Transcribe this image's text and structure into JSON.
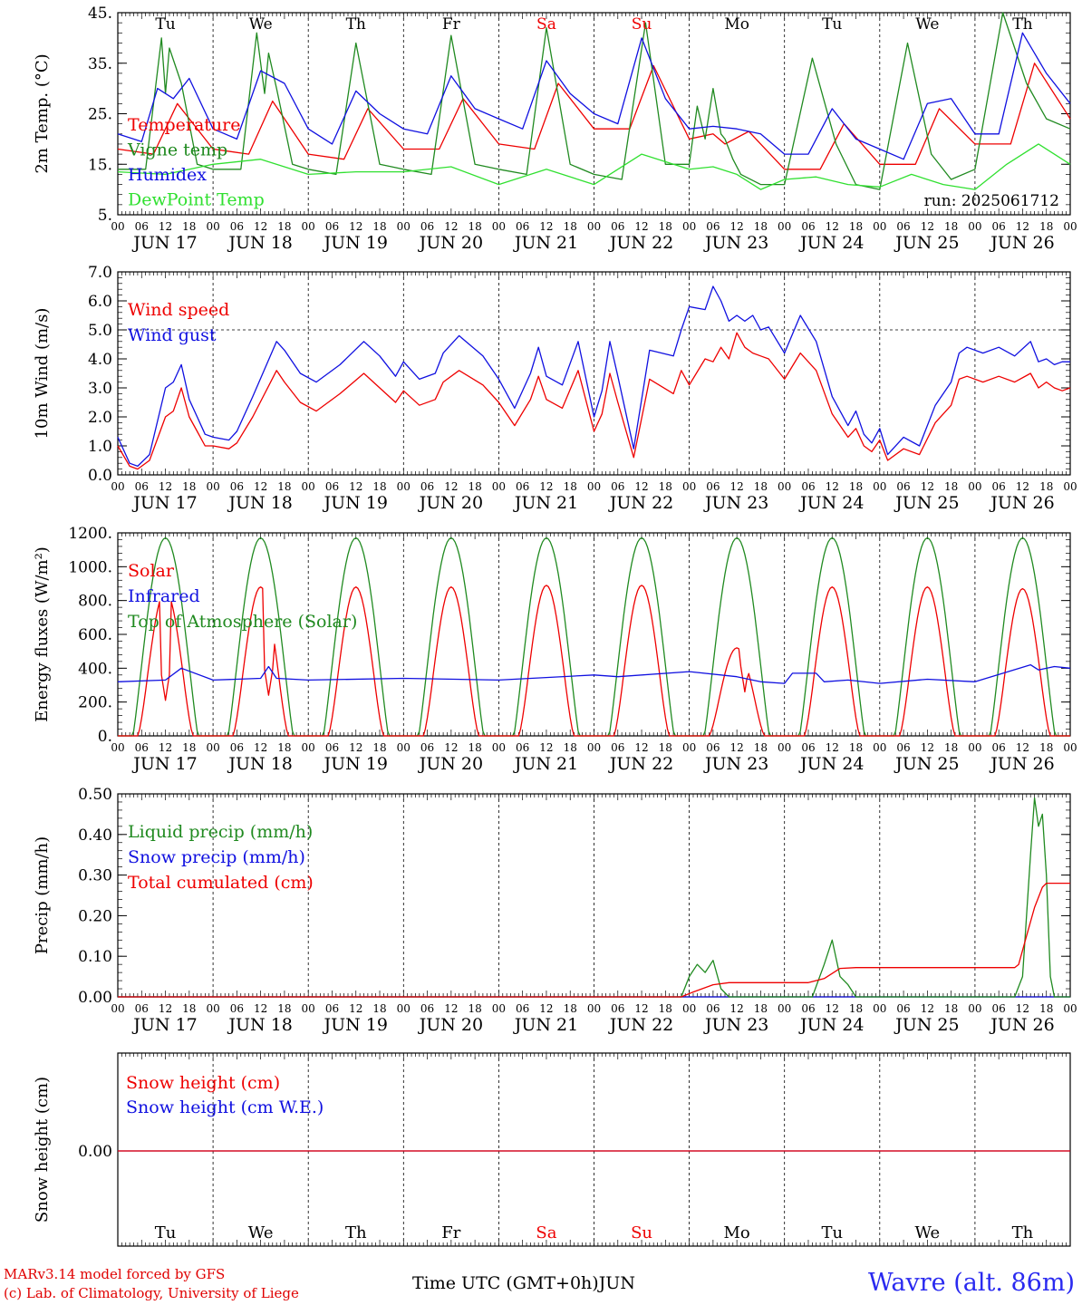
{
  "colors": {
    "red": "#ee0000",
    "green": "#208a20",
    "blue": "#1010e0",
    "lightgreen": "#30e030",
    "axis": "#000000",
    "weekend": "#ee0000"
  },
  "days": [
    "Tu",
    "We",
    "Th",
    "Fr",
    "Sa",
    "Su",
    "Mo",
    "Tu",
    "We",
    "Th"
  ],
  "weekend_days": [
    "Sa",
    "Su"
  ],
  "dates": [
    "JUN 17",
    "JUN 18",
    "JUN 19",
    "JUN 20",
    "JUN 21",
    "JUN 22",
    "JUN 23",
    "JUN 24",
    "JUN 25",
    "JUN 26"
  ],
  "date_numbers": [
    "17",
    "18",
    "19",
    "20",
    "21",
    "22",
    "23",
    "24",
    "25",
    "26"
  ],
  "hour_ticks": [
    "00",
    "06",
    "12",
    "18"
  ],
  "hour_tick_final": "00",
  "footer": {
    "credit1": "MARv3.14 model forced by GFS",
    "credit2": "(c) Lab. of Climatology, University of Liege",
    "station": "Wavre (alt. 86m)",
    "xlabel": "Time UTC (GMT+0h)JUN"
  },
  "chart_data": [
    {
      "type": "line",
      "ylabel": "2m Temp. (°C)",
      "ylim": [
        5,
        45
      ],
      "yticks": [
        "5.",
        "15.",
        "25.",
        "35.",
        "45."
      ],
      "annotation": "run: 2025061712",
      "days_labels_shown": true,
      "series": [
        {
          "name": "Temperature",
          "color": "red",
          "x": [
            0,
            9,
            15,
            24,
            33,
            39,
            48,
            57,
            63,
            72,
            81,
            87,
            96,
            105,
            111,
            120,
            129,
            135,
            144,
            150,
            153,
            159,
            162,
            168,
            177,
            183,
            192,
            201,
            207,
            216,
            225,
            231,
            240
          ],
          "y": [
            18,
            17,
            27,
            18,
            17,
            27.5,
            17,
            16,
            26,
            18,
            18,
            28,
            19,
            18,
            31,
            22,
            22,
            34.5,
            20,
            21,
            19,
            21.5,
            19,
            14,
            14,
            23,
            15,
            15,
            26,
            19,
            19,
            35,
            24
          ]
        },
        {
          "name": "Vigne temp",
          "color": "green",
          "x": [
            0,
            7,
            11,
            12,
            13,
            16,
            20,
            24,
            31,
            35,
            37,
            38,
            40,
            44,
            48,
            55,
            60,
            66,
            72,
            79,
            84,
            90,
            96,
            103,
            108,
            114,
            120,
            127,
            133,
            138,
            144,
            146,
            148,
            150,
            152,
            153,
            155,
            157,
            162,
            168,
            175,
            181,
            186,
            192,
            199,
            205,
            210,
            216,
            223,
            229,
            234,
            240
          ],
          "y": [
            14,
            14,
            40,
            29,
            38,
            31,
            15,
            14,
            14,
            41,
            29,
            37,
            30,
            15,
            14,
            13,
            39,
            15,
            14,
            13,
            40.5,
            15,
            14,
            13,
            42,
            15,
            13,
            12,
            43,
            15,
            15,
            26.5,
            20,
            30,
            21,
            20,
            16,
            13,
            11,
            11,
            36,
            19,
            11,
            10,
            39,
            17,
            12,
            14,
            45,
            31,
            24,
            22
          ]
        },
        {
          "name": "Humidex",
          "color": "blue",
          "x": [
            0,
            6,
            10,
            14,
            18,
            24,
            30,
            36,
            42,
            48,
            54,
            60,
            66,
            72,
            78,
            84,
            90,
            96,
            102,
            108,
            114,
            120,
            126,
            132,
            138,
            144,
            150,
            156,
            162,
            168,
            174,
            180,
            186,
            192,
            198,
            204,
            210,
            216,
            222,
            228,
            234,
            240
          ],
          "y": [
            21,
            19.5,
            30,
            28,
            32,
            22,
            20,
            33.5,
            31,
            22,
            19,
            29.5,
            25,
            22,
            21,
            32.5,
            26,
            24,
            22,
            35.5,
            29,
            25,
            23,
            40,
            28,
            22,
            22.5,
            22,
            21,
            17,
            17,
            26,
            20,
            18,
            16,
            27,
            28,
            21,
            21,
            41,
            33,
            27
          ]
        },
        {
          "name": "DewPoint Temp",
          "color": "lightgreen",
          "x": [
            0,
            12,
            24,
            36,
            48,
            60,
            72,
            84,
            96,
            108,
            120,
            132,
            144,
            150,
            156,
            162,
            168,
            176,
            184,
            192,
            200,
            208,
            216,
            224,
            232,
            240
          ],
          "y": [
            13.5,
            13,
            15,
            16,
            13,
            13.5,
            13.5,
            14.5,
            11,
            14,
            11,
            17,
            14,
            14.5,
            13,
            10,
            12,
            12.5,
            11,
            10.5,
            13,
            11,
            10,
            15,
            19,
            15
          ]
        }
      ]
    },
    {
      "type": "line",
      "ylabel": "10m Wind (m/s)",
      "ylim": [
        0,
        7
      ],
      "yticks": [
        "0.0",
        "1.0",
        "2.0",
        "3.0",
        "4.0",
        "5.0",
        "6.0",
        "7.0"
      ],
      "reference_line": 5.0,
      "series": [
        {
          "name": "Wind speed",
          "color": "red",
          "x": [
            0,
            3,
            5,
            8,
            12,
            14,
            16,
            18,
            20,
            22,
            24,
            28,
            30,
            34,
            40,
            42,
            46,
            50,
            56,
            62,
            66,
            70,
            72,
            76,
            80,
            82,
            86,
            92,
            96,
            100,
            104,
            106,
            108,
            112,
            116,
            120,
            122,
            124,
            126,
            130,
            134,
            140,
            142,
            144,
            148,
            150,
            152,
            154,
            156,
            158,
            160,
            162,
            164,
            168,
            172,
            176,
            180,
            184,
            186,
            188,
            190,
            192,
            194,
            198,
            202,
            206,
            210,
            212,
            214,
            218,
            222,
            226,
            230,
            232,
            234,
            236,
            238,
            240
          ],
          "y": [
            1.0,
            0.3,
            0.2,
            0.5,
            2.0,
            2.2,
            3.0,
            2.0,
            1.5,
            1.0,
            1.0,
            0.9,
            1.1,
            2.0,
            3.6,
            3.2,
            2.5,
            2.2,
            2.8,
            3.5,
            3.0,
            2.5,
            2.9,
            2.4,
            2.6,
            3.2,
            3.6,
            3.1,
            2.5,
            1.7,
            2.6,
            3.4,
            2.6,
            2.3,
            3.6,
            1.5,
            2.1,
            3.5,
            2.5,
            0.6,
            3.3,
            2.8,
            3.6,
            3.1,
            4.0,
            3.9,
            4.4,
            4.0,
            4.9,
            4.4,
            4.2,
            4.1,
            4.0,
            3.3,
            4.2,
            3.6,
            2.1,
            1.3,
            1.6,
            1.0,
            0.8,
            1.2,
            0.5,
            0.9,
            0.7,
            1.8,
            2.4,
            3.3,
            3.4,
            3.2,
            3.4,
            3.2,
            3.5,
            3.0,
            3.2,
            3.0,
            2.9,
            3.0
          ]
        },
        {
          "name": "Wind gust",
          "color": "blue",
          "x": [
            0,
            3,
            5,
            8,
            12,
            14,
            16,
            18,
            20,
            22,
            24,
            28,
            30,
            34,
            40,
            42,
            46,
            50,
            56,
            62,
            66,
            70,
            72,
            76,
            80,
            82,
            86,
            92,
            96,
            100,
            104,
            106,
            108,
            112,
            116,
            120,
            122,
            124,
            126,
            130,
            134,
            140,
            142,
            144,
            148,
            150,
            152,
            154,
            156,
            158,
            160,
            162,
            164,
            168,
            172,
            176,
            180,
            184,
            186,
            188,
            190,
            192,
            194,
            198,
            202,
            206,
            210,
            212,
            214,
            218,
            222,
            226,
            230,
            232,
            234,
            236,
            238,
            240
          ],
          "y": [
            1.3,
            0.4,
            0.3,
            0.7,
            3.0,
            3.2,
            3.8,
            2.6,
            2.0,
            1.4,
            1.3,
            1.2,
            1.5,
            2.7,
            4.6,
            4.3,
            3.5,
            3.2,
            3.8,
            4.6,
            4.1,
            3.4,
            3.9,
            3.3,
            3.5,
            4.2,
            4.8,
            4.1,
            3.3,
            2.3,
            3.5,
            4.4,
            3.4,
            3.1,
            4.6,
            2.0,
            2.9,
            4.6,
            3.4,
            0.9,
            4.3,
            4.1,
            5.0,
            5.8,
            5.7,
            6.5,
            6.0,
            5.3,
            5.5,
            5.3,
            5.5,
            5.0,
            5.1,
            4.2,
            5.5,
            4.6,
            2.7,
            1.7,
            2.2,
            1.4,
            1.1,
            1.6,
            0.7,
            1.3,
            1.0,
            2.4,
            3.2,
            4.2,
            4.4,
            4.2,
            4.4,
            4.1,
            4.6,
            3.9,
            4.0,
            3.8,
            3.9,
            3.9
          ]
        }
      ]
    },
    {
      "type": "line",
      "ylabel": "Energy fluxes (W/m²)",
      "ylim": [
        0,
        1200
      ],
      "yticks": [
        "0.",
        "200.",
        "400.",
        "600.",
        "800.",
        "1000.",
        "1200."
      ],
      "series": [
        {
          "name": "Solar",
          "color": "red",
          "peaks": [
            860,
            880,
            880,
            880,
            890,
            890,
            520,
            880,
            880,
            870
          ],
          "dips": [
            [
              12,
              210
            ],
            [
              38,
              240
            ],
            [
              150,
              180
            ],
            [
              158,
              260
            ]
          ]
        },
        {
          "name": "Infrared",
          "color": "blue",
          "x": [
            0,
            12,
            16,
            24,
            36,
            38,
            40,
            48,
            72,
            96,
            120,
            126,
            144,
            156,
            162,
            168,
            170,
            176,
            178,
            184,
            192,
            204,
            216,
            230,
            232,
            236,
            240
          ],
          "y": [
            320,
            330,
            400,
            330,
            340,
            410,
            340,
            330,
            340,
            330,
            360,
            350,
            380,
            350,
            320,
            310,
            370,
            370,
            320,
            330,
            310,
            335,
            320,
            420,
            390,
            410,
            400
          ]
        },
        {
          "name": "Top of Atmosphere (Solar)",
          "color": "green",
          "peak": 1170
        }
      ]
    },
    {
      "type": "line",
      "ylabel": "Precip (mm/h)",
      "ylim": [
        0,
        0.5
      ],
      "yticks": [
        "0.00",
        "0.10",
        "0.20",
        "0.30",
        "0.40",
        "0.50"
      ],
      "series": [
        {
          "name": "Liquid precip (mm/h)",
          "color": "green",
          "x": [
            0,
            142,
            144,
            146,
            148,
            150,
            152,
            154,
            175,
            178,
            180,
            182,
            184,
            186,
            216,
            226,
            228,
            230,
            231,
            232,
            233,
            234,
            235,
            236,
            240
          ],
          "y": [
            0,
            0,
            0.05,
            0.08,
            0.06,
            0.09,
            0.02,
            0,
            0,
            0.08,
            0.14,
            0.05,
            0.03,
            0,
            0,
            0,
            0.05,
            0.35,
            0.49,
            0.42,
            0.45,
            0.3,
            0.05,
            0,
            0
          ]
        },
        {
          "name": "Snow precip (mm/h)",
          "color": "blue",
          "x": [
            0,
            240
          ],
          "y": [
            0,
            0
          ]
        },
        {
          "name": "Total cumulated (cm)",
          "color": "red",
          "x": [
            0,
            142,
            145,
            150,
            154,
            174,
            178,
            182,
            186,
            226,
            227,
            229,
            231,
            233,
            234,
            236,
            240
          ],
          "y": [
            0,
            0,
            0.012,
            0.03,
            0.035,
            0.035,
            0.045,
            0.07,
            0.072,
            0.072,
            0.08,
            0.15,
            0.22,
            0.27,
            0.28,
            0.28,
            0.28
          ]
        }
      ]
    },
    {
      "type": "line",
      "ylabel": "Snow height (cm)",
      "yticks": [
        "0.00"
      ],
      "series": [
        {
          "name": "Snow height (cm)",
          "color": "red",
          "x": [
            0,
            240
          ],
          "y": [
            0,
            0
          ]
        },
        {
          "name": "Snow height (cm W.E.)",
          "color": "blue",
          "x": [
            0,
            240
          ],
          "y": [
            0,
            0
          ]
        }
      ]
    }
  ]
}
